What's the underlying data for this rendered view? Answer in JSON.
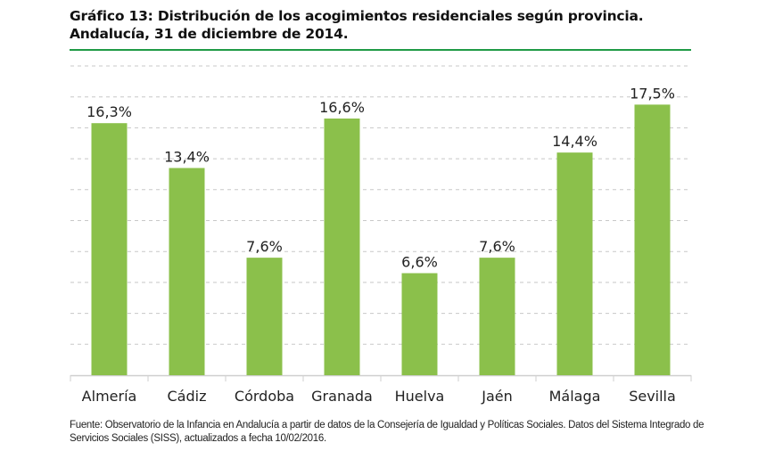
{
  "chart_data": {
    "type": "bar",
    "title_line1": "Gráfico 13: Distribución de los acogimientos residenciales según provincia.",
    "title_line2": "Andalucía, 31 de diciembre de 2014.",
    "categories": [
      "Almería",
      "Cádiz",
      "Córdoba",
      "Granada",
      "Huelva",
      "Jaén",
      "Málaga",
      "Sevilla"
    ],
    "values": [
      16.3,
      13.4,
      7.6,
      16.6,
      6.6,
      7.6,
      14.4,
      17.5
    ],
    "labels": [
      "16,3%",
      "13,4%",
      "7,6%",
      "16,6%",
      "6,6%",
      "7,6%",
      "14,4%",
      "17,5%"
    ],
    "ylim": [
      0,
      20
    ],
    "ytick_step": 2,
    "grid": true,
    "xlabel": "",
    "ylabel": "",
    "bar_color": "#8bc04b",
    "accent_color": "#1f9a45"
  },
  "source": "Fuente: Observatorio de la Infancia en Andalucía a partir de datos de la Consejería de Igualdad y Políticas Sociales. Datos del Sistema Integrado de Servicios Sociales (SISS), actualizados a fecha 10/02/2016."
}
